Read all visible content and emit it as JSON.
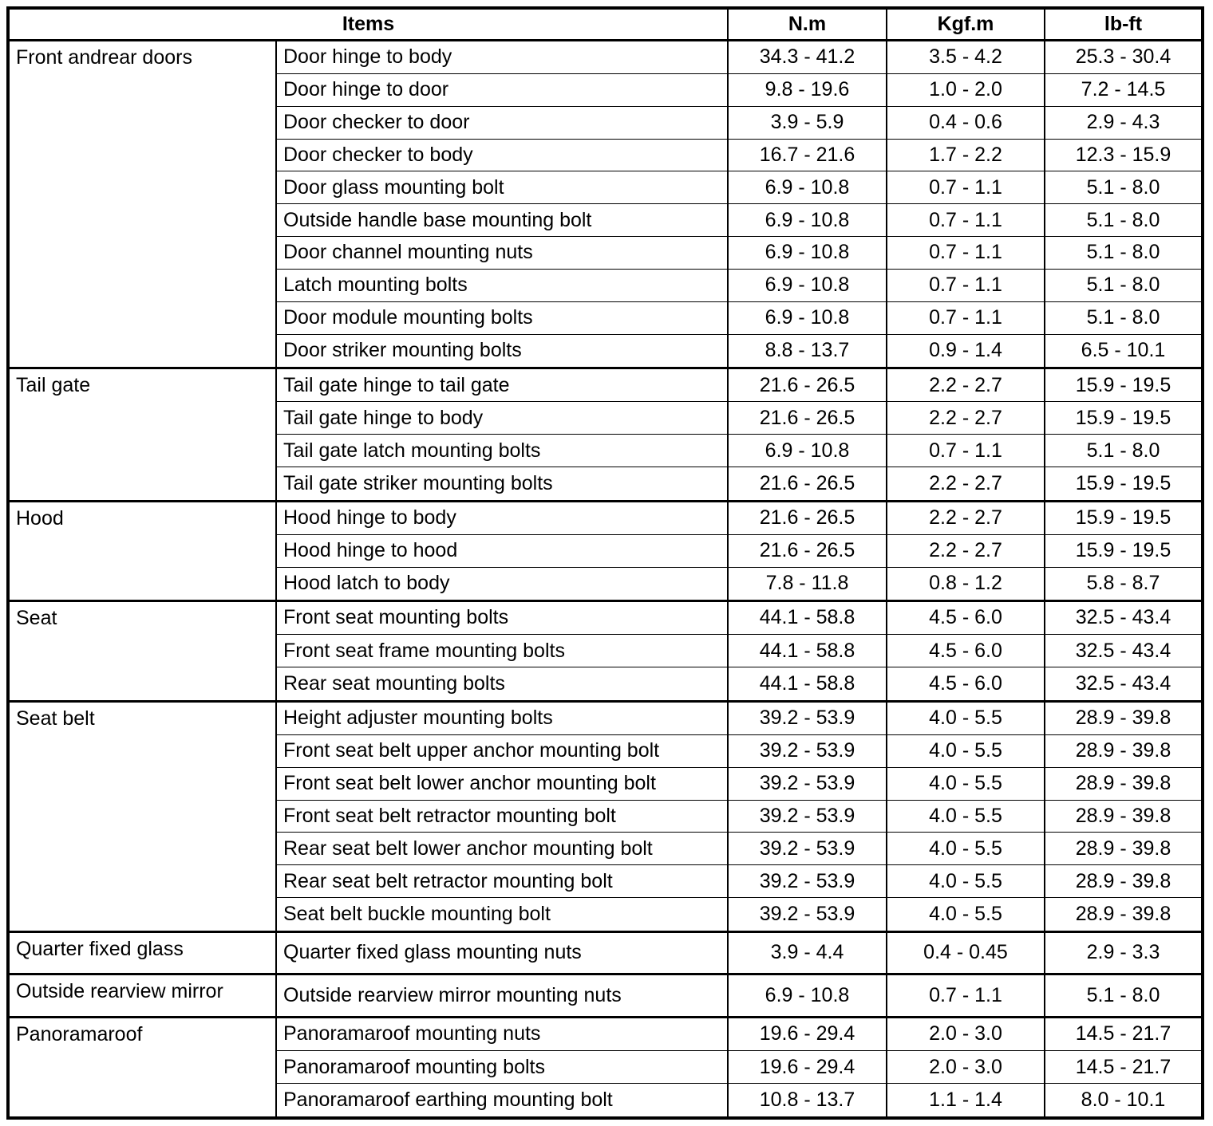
{
  "page": {
    "background": "#ffffff",
    "border_color": "#000000",
    "text_color": "#000000"
  },
  "table": {
    "columns": {
      "items": "Items",
      "nm": "N.m",
      "kgfm": "Kgf.m",
      "lbft": "lb-ft"
    },
    "groups": [
      {
        "name": "Front andrear doors",
        "rows": [
          {
            "item": "Door hinge to body",
            "nm": "34.3 - 41.2",
            "kgfm": "3.5 - 4.2",
            "lbft": "25.3 - 30.4"
          },
          {
            "item": "Door hinge to door",
            "nm": "9.8 - 19.6",
            "kgfm": "1.0 - 2.0",
            "lbft": "7.2 - 14.5"
          },
          {
            "item": "Door checker to door",
            "nm": "3.9 - 5.9",
            "kgfm": "0.4 - 0.6",
            "lbft": "2.9 - 4.3"
          },
          {
            "item": "Door checker to body",
            "nm": "16.7 - 21.6",
            "kgfm": "1.7 - 2.2",
            "lbft": "12.3 - 15.9"
          },
          {
            "item": "Door glass mounting bolt",
            "nm": "6.9 - 10.8",
            "kgfm": "0.7 - 1.1",
            "lbft": "5.1 - 8.0"
          },
          {
            "item": "Outside handle base mounting bolt",
            "nm": "6.9 - 10.8",
            "kgfm": "0.7 - 1.1",
            "lbft": "5.1 - 8.0"
          },
          {
            "item": "Door channel mounting nuts",
            "nm": "6.9 - 10.8",
            "kgfm": "0.7 - 1.1",
            "lbft": "5.1 - 8.0"
          },
          {
            "item": "Latch mounting bolts",
            "nm": "6.9 - 10.8",
            "kgfm": "0.7 - 1.1",
            "lbft": "5.1 - 8.0"
          },
          {
            "item": "Door module mounting bolts",
            "nm": "6.9 - 10.8",
            "kgfm": "0.7 - 1.1",
            "lbft": "5.1 - 8.0"
          },
          {
            "item": "Door striker mounting bolts",
            "nm": "8.8 - 13.7",
            "kgfm": "0.9 - 1.4",
            "lbft": "6.5 - 10.1"
          }
        ]
      },
      {
        "name": "Tail gate",
        "rows": [
          {
            "item": "Tail gate hinge to tail gate",
            "nm": "21.6 - 26.5",
            "kgfm": "2.2 - 2.7",
            "lbft": "15.9 - 19.5"
          },
          {
            "item": "Tail gate hinge to body",
            "nm": "21.6 - 26.5",
            "kgfm": "2.2 - 2.7",
            "lbft": "15.9 - 19.5"
          },
          {
            "item": "Tail gate latch mounting bolts",
            "nm": "6.9 - 10.8",
            "kgfm": "0.7 - 1.1",
            "lbft": "5.1 - 8.0"
          },
          {
            "item": "Tail gate striker mounting bolts",
            "nm": "21.6 - 26.5",
            "kgfm": "2.2 - 2.7",
            "lbft": "15.9 - 19.5"
          }
        ]
      },
      {
        "name": "Hood",
        "rows": [
          {
            "item": "Hood hinge to body",
            "nm": "21.6 - 26.5",
            "kgfm": "2.2 - 2.7",
            "lbft": "15.9 - 19.5"
          },
          {
            "item": "Hood hinge to hood",
            "nm": "21.6 - 26.5",
            "kgfm": "2.2 - 2.7",
            "lbft": "15.9 - 19.5"
          },
          {
            "item": "Hood latch to body",
            "nm": "7.8 - 11.8",
            "kgfm": "0.8 - 1.2",
            "lbft": "5.8 - 8.7"
          }
        ]
      },
      {
        "name": "Seat",
        "rows": [
          {
            "item": "Front seat mounting bolts",
            "nm": "44.1 - 58.8",
            "kgfm": "4.5 - 6.0",
            "lbft": "32.5 - 43.4"
          },
          {
            "item": "Front seat frame mounting bolts",
            "nm": "44.1 - 58.8",
            "kgfm": "4.5 - 6.0",
            "lbft": "32.5 - 43.4"
          },
          {
            "item": "Rear seat mounting bolts",
            "nm": "44.1 - 58.8",
            "kgfm": "4.5 - 6.0",
            "lbft": "32.5 - 43.4"
          }
        ]
      },
      {
        "name": "Seat belt",
        "rows": [
          {
            "item": "Height adjuster mounting bolts",
            "nm": "39.2 - 53.9",
            "kgfm": "4.0 - 5.5",
            "lbft": "28.9 - 39.8"
          },
          {
            "item": "Front seat belt upper anchor mounting bolt",
            "nm": "39.2 - 53.9",
            "kgfm": "4.0 - 5.5",
            "lbft": "28.9 - 39.8"
          },
          {
            "item": "Front seat belt lower anchor mounting bolt",
            "nm": "39.2 - 53.9",
            "kgfm": "4.0 - 5.5",
            "lbft": "28.9 - 39.8"
          },
          {
            "item": "Front seat belt retractor mounting bolt",
            "nm": "39.2 - 53.9",
            "kgfm": "4.0 - 5.5",
            "lbft": "28.9 - 39.8"
          },
          {
            "item": "Rear seat belt lower anchor mounting bolt",
            "nm": "39.2 - 53.9",
            "kgfm": "4.0 - 5.5",
            "lbft": "28.9 - 39.8"
          },
          {
            "item": "Rear seat belt retractor mounting bolt",
            "nm": "39.2 - 53.9",
            "kgfm": "4.0 - 5.5",
            "lbft": "28.9 - 39.8"
          },
          {
            "item": "Seat belt buckle mounting bolt",
            "nm": "39.2 - 53.9",
            "kgfm": "4.0 - 5.5",
            "lbft": "28.9 - 39.8"
          }
        ]
      },
      {
        "name": "Quarter fixed glass",
        "rows": [
          {
            "item": "Quarter fixed glass mounting nuts",
            "nm": "3.9 - 4.4",
            "kgfm": "0.4 - 0.45",
            "lbft": "2.9 - 3.3"
          }
        ]
      },
      {
        "name": "Outside rearview mirror",
        "rows": [
          {
            "item": "Outside rearview mirror mounting nuts",
            "nm": "6.9 - 10.8",
            "kgfm": "0.7 - 1.1",
            "lbft": "5.1 - 8.0"
          }
        ]
      },
      {
        "name": "Panoramaroof",
        "rows": [
          {
            "item": "Panoramaroof mounting nuts",
            "nm": "19.6 - 29.4",
            "kgfm": "2.0 - 3.0",
            "lbft": "14.5 - 21.7"
          },
          {
            "item": "Panoramaroof mounting bolts",
            "nm": "19.6 - 29.4",
            "kgfm": "2.0 - 3.0",
            "lbft": "14.5 - 21.7"
          },
          {
            "item": "Panoramaroof earthing mounting bolt",
            "nm": "10.8 - 13.7",
            "kgfm": "1.1 - 1.4",
            "lbft": "8.0 - 10.1"
          }
        ]
      }
    ]
  }
}
